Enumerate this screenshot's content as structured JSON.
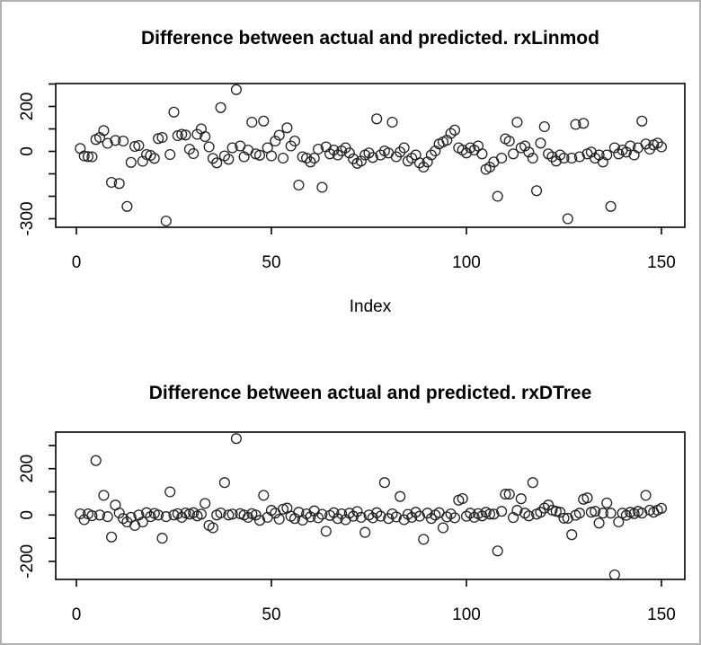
{
  "figure": {
    "background": "#ffffff",
    "border_color": "#b2b2b2",
    "point_color": "#222222",
    "axis_color": "#000000"
  },
  "chart_data": [
    {
      "type": "scatter",
      "title": "Difference between actual and predicted. rxLinmod",
      "xlabel": "Index",
      "ylabel": "",
      "marker": "open-circle",
      "grid": false,
      "x_ticks": [
        0,
        50,
        100,
        150
      ],
      "y_ticks": [
        300,
        200,
        100,
        0,
        -100,
        -200,
        -300
      ],
      "y_tick_labels": [
        200,
        0,
        -300
      ],
      "xlim": [
        0,
        156
      ],
      "ylim": [
        -340,
        300
      ],
      "x_start_index": 1,
      "values": [
        13,
        -20,
        -23,
        -24,
        53,
        62,
        93,
        36,
        -138,
        49,
        -143,
        46,
        -245,
        -49,
        22,
        26,
        -44,
        -14,
        -18,
        -31,
        57,
        62,
        -310,
        -14,
        175,
        70,
        76,
        73,
        10,
        -10,
        76,
        100,
        66,
        20,
        -31,
        -51,
        195,
        -20,
        -35,
        16,
        275,
        24,
        -24,
        6,
        130,
        -11,
        -17,
        135,
        16,
        -20,
        46,
        72,
        -30,
        105,
        24,
        46,
        -150,
        -24,
        -30,
        -47,
        -30,
        10,
        -160,
        20,
        -11,
        6,
        -16,
        2,
        16,
        -7,
        -33,
        -53,
        -43,
        -16,
        -7,
        -27,
        145,
        -16,
        2,
        -7,
        130,
        -24,
        -3,
        16,
        -43,
        -30,
        -16,
        -51,
        -70,
        -47,
        -16,
        2,
        33,
        42,
        50,
        80,
        95,
        16,
        6,
        -7,
        16,
        6,
        24,
        -11,
        -80,
        -70,
        -47,
        -200,
        -30,
        56,
        46,
        -11,
        130,
        16,
        24,
        -3,
        -30,
        -175,
        37,
        110,
        -11,
        -24,
        -43,
        -16,
        -30,
        -300,
        -30,
        120,
        -24,
        125,
        -11,
        -3,
        -30,
        -16,
        -47,
        -16,
        -245,
        16,
        -11,
        6,
        -3,
        24,
        -16,
        16,
        135,
        33,
        10,
        29,
        37,
        20
      ]
    },
    {
      "type": "scatter",
      "title": "Difference between actual and predicted. rxDTree",
      "xlabel": "",
      "ylabel": "",
      "marker": "open-circle",
      "grid": false,
      "x_ticks": [
        0,
        50,
        100,
        150
      ],
      "y_ticks": [
        300,
        200,
        100,
        0,
        -100,
        -200
      ],
      "y_tick_labels": [
        200,
        0,
        -200
      ],
      "xlim": [
        0,
        156
      ],
      "ylim": [
        -280,
        355
      ],
      "x_start_index": 1,
      "values": [
        5,
        -20,
        5,
        -3,
        235,
        0,
        85,
        -7,
        -95,
        43,
        9,
        -15,
        -30,
        -10,
        -45,
        0,
        -30,
        10,
        -7,
        7,
        0,
        -100,
        -7,
        100,
        0,
        6,
        -10,
        9,
        4,
        10,
        -4,
        4,
        50,
        -45,
        -55,
        0,
        9,
        140,
        0,
        4,
        330,
        6,
        0,
        -10,
        6,
        0,
        -23,
        85,
        -10,
        20,
        8,
        -18,
        25,
        30,
        -5,
        -15,
        12,
        -22,
        5,
        -8,
        18,
        -12,
        3,
        -70,
        -2,
        10,
        -15,
        5,
        -20,
        8,
        -5,
        15,
        -10,
        -75,
        0,
        -12,
        10,
        -5,
        140,
        -15,
        5,
        -8,
        80,
        -20,
        3,
        -10,
        12,
        -5,
        -105,
        8,
        -15,
        0,
        10,
        -55,
        -8,
        5,
        -12,
        64,
        71,
        -5,
        8,
        -10,
        6,
        -4,
        12,
        4,
        4,
        -155,
        16,
        90,
        90,
        -11,
        20,
        70,
        8,
        -4,
        140,
        4,
        12,
        30,
        43,
        21,
        16,
        12,
        -14,
        -14,
        -85,
        -1,
        8,
        68,
        74,
        12,
        16,
        -35,
        8,
        52,
        8,
        -258,
        -30,
        8,
        -1,
        12,
        6,
        16,
        8,
        85,
        21,
        12,
        21,
        29
      ]
    }
  ]
}
